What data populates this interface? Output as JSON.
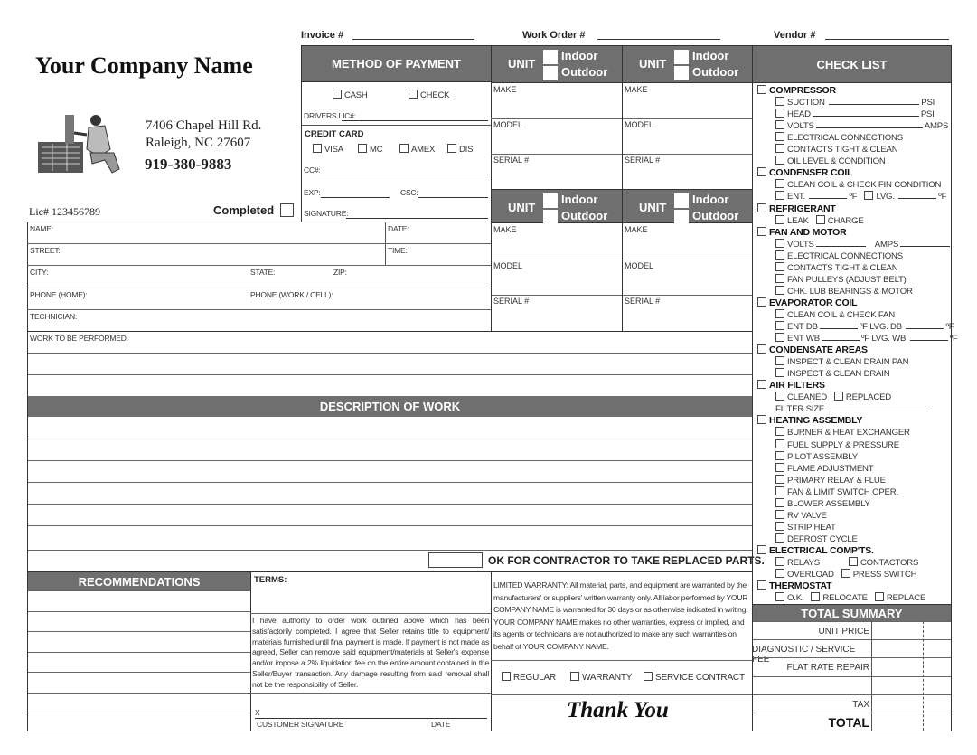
{
  "top": {
    "invoice": "Invoice #",
    "work_order": "Work Order #",
    "vendor": "Vendor #"
  },
  "company": {
    "name": "Your Company Name",
    "address1": "7406 Chapel Hill Rd.",
    "address2": "Raleigh, NC 27607",
    "phone": "919-380-9883",
    "license": "Lic#  123456789",
    "completed": "Completed",
    "logo_icon": "technician-servicing-ac-unit-illustration"
  },
  "payment": {
    "title": "METHOD OF PAYMENT",
    "cash": "CASH",
    "check": "CHECK",
    "drivers_lic": "DRIVERS LIC#:",
    "credit_card": "CREDIT CARD",
    "visa": "VISA",
    "mc": "MC",
    "amex": "AMEX",
    "dis": "DIS",
    "cc": "CC#:",
    "exp": "EXP:",
    "csc": "CSC:",
    "signature": "SIGNATURE:"
  },
  "units": {
    "unit": "UNIT",
    "indoor": "Indoor",
    "outdoor": "Outdoor",
    "make": "MAKE",
    "model": "MODEL",
    "serial": "SERIAL #"
  },
  "customer": {
    "name": "NAME:",
    "date": "DATE:",
    "street": "STREET:",
    "time": "TIME:",
    "city": "CITY:",
    "state": "STATE:",
    "zip": "ZIP:",
    "phone_home": "PHONE (HOME):",
    "phone_work": "PHONE (WORK / CELL):",
    "technician": "TECHNICIAN:",
    "work": "WORK TO BE PERFORMED:"
  },
  "description": {
    "title": "DESCRIPTION OF WORK",
    "ok_parts": "OK FOR CONTRACTOR TO TAKE REPLACED PARTS."
  },
  "recommendations": {
    "title": "RECOMMENDATIONS"
  },
  "terms": {
    "title": "TERMS:",
    "text": "I have authority to order work outlined above which has been satisfactorily completed. I agree that Seller retains title to equipment/ materials furnished until final payment is made.  If payment is not made as agreed, Seller can remove said equipment/materials at Seller's expense and/or impose a 2% liquidation fee on the entire amount contained in the Seller/Buyer transaction. Any damage resulting from said removal shall not be the responsibility of Seller.",
    "x": "X",
    "customer_signature": "CUSTOMER SIGNATURE",
    "date": "DATE"
  },
  "warranty": {
    "text": "LIMITED WARRANTY:  All material, parts, and equipment are warranted by the manufacturers' or suppliers' written warranty only.  All labor performed by YOUR COMPANY NAME is warranted for 30 days or as otherwise indicated in writing. YOUR COMPANY NAME makes no other warranties, express or implied, and its agents or technicians are not authorized to make any such warranties on behalf of YOUR COMPANY NAME.",
    "regular": "REGULAR",
    "warranty": "WARRANTY",
    "service_contract": "SERVICE CONTRACT",
    "thank_you": "Thank You"
  },
  "checklist": {
    "title": "CHECK LIST",
    "lines": [
      {
        "l": 0,
        "p": [
          [
            "box"
          ],
          [
            "t",
            "COMPRESSOR"
          ]
        ]
      },
      {
        "l": 1,
        "p": [
          [
            "box"
          ],
          [
            "t",
            "SUCTION "
          ],
          [
            "blank",
            "b-long"
          ],
          [
            "t",
            "PSI"
          ]
        ]
      },
      {
        "l": 1,
        "p": [
          [
            "box"
          ],
          [
            "t",
            "HEAD"
          ],
          [
            "blank",
            "b-xlong"
          ],
          [
            "t",
            "PSI"
          ]
        ]
      },
      {
        "l": 1,
        "p": [
          [
            "box"
          ],
          [
            "t",
            "VOLTS"
          ],
          [
            "blank",
            "b-xlong"
          ],
          [
            "t",
            "AMPS"
          ]
        ]
      },
      {
        "l": 1,
        "p": [
          [
            "box"
          ],
          [
            "t",
            "ELECTRICAL CONNECTIONS"
          ]
        ]
      },
      {
        "l": 1,
        "p": [
          [
            "box"
          ],
          [
            "t",
            "CONTACTS TIGHT & CLEAN"
          ]
        ]
      },
      {
        "l": 1,
        "p": [
          [
            "box"
          ],
          [
            "t",
            "OIL LEVEL & CONDITION"
          ]
        ]
      },
      {
        "l": 0,
        "p": [
          [
            "box"
          ],
          [
            "t",
            "CONDENSER COIL"
          ]
        ]
      },
      {
        "l": 1,
        "p": [
          [
            "box"
          ],
          [
            "t",
            "CLEAN COIL & CHECK FIN CONDITION"
          ]
        ]
      },
      {
        "l": 1,
        "p": [
          [
            "box"
          ],
          [
            "t",
            "ENT. "
          ],
          [
            "blank",
            "b-short"
          ],
          [
            "t",
            "ºF"
          ],
          [
            "gap"
          ],
          [
            "box"
          ],
          [
            "t",
            "LVG. "
          ],
          [
            "blank",
            "b-short"
          ],
          [
            "t",
            "ºF"
          ]
        ]
      },
      {
        "l": 0,
        "p": [
          [
            "box"
          ],
          [
            "t",
            "REFRIGERANT"
          ]
        ]
      },
      {
        "l": 1,
        "p": [
          [
            "box"
          ],
          [
            "t",
            "LEAK"
          ],
          [
            "gap"
          ],
          [
            "box"
          ],
          [
            "t",
            "CHARGE"
          ]
        ]
      },
      {
        "l": 0,
        "p": [
          [
            "box"
          ],
          [
            "t",
            "FAN AND MOTOR"
          ]
        ]
      },
      {
        "l": 1,
        "p": [
          [
            "box"
          ],
          [
            "t",
            "VOLTS"
          ],
          [
            "blank",
            "b-mid"
          ],
          [
            "gap"
          ],
          [
            "t",
            "AMPS"
          ],
          [
            "blank",
            "b-mid"
          ]
        ]
      },
      {
        "l": 1,
        "p": [
          [
            "box"
          ],
          [
            "t",
            "ELECTRICAL CONNECTIONS"
          ]
        ]
      },
      {
        "l": 1,
        "p": [
          [
            "box"
          ],
          [
            "t",
            "CONTACTS TIGHT & CLEAN"
          ]
        ]
      },
      {
        "l": 1,
        "p": [
          [
            "box"
          ],
          [
            "t",
            "FAN PULLEYS (ADJUST BELT)"
          ]
        ]
      },
      {
        "l": 1,
        "p": [
          [
            "box"
          ],
          [
            "t",
            "CHK. LUB BEARINGS & MOTOR"
          ]
        ]
      },
      {
        "l": 0,
        "p": [
          [
            "box"
          ],
          [
            "t",
            "EVAPORATOR COIL"
          ]
        ]
      },
      {
        "l": 1,
        "p": [
          [
            "box"
          ],
          [
            "t",
            "CLEAN COIL & CHECK FAN"
          ]
        ]
      },
      {
        "l": 1,
        "p": [
          [
            "box"
          ],
          [
            "t",
            "ENT DB"
          ],
          [
            "blank",
            "b-short"
          ],
          [
            "t",
            "ºF  LVG. DB "
          ],
          [
            "blank",
            "b-short"
          ],
          [
            "t",
            "ºF"
          ]
        ]
      },
      {
        "l": 1,
        "p": [
          [
            "box"
          ],
          [
            "t",
            "ENT WB"
          ],
          [
            "blank",
            "b-short"
          ],
          [
            "t",
            "ºF  LVG. WB "
          ],
          [
            "blank",
            "b-short"
          ],
          [
            "t",
            "ºF"
          ]
        ]
      },
      {
        "l": 0,
        "p": [
          [
            "box"
          ],
          [
            "t",
            "CONDENSATE AREAS"
          ]
        ]
      },
      {
        "l": 1,
        "p": [
          [
            "box"
          ],
          [
            "t",
            "INSPECT & CLEAN DRAIN PAN"
          ]
        ]
      },
      {
        "l": 1,
        "p": [
          [
            "box"
          ],
          [
            "t",
            "INSPECT & CLEAN DRAIN"
          ]
        ]
      },
      {
        "l": 0,
        "p": [
          [
            "box"
          ],
          [
            "t",
            "AIR FILTERS"
          ]
        ]
      },
      {
        "l": 1,
        "p": [
          [
            "box"
          ],
          [
            "t",
            "CLEANED"
          ],
          [
            "gap"
          ],
          [
            "box"
          ],
          [
            "t",
            "REPLACED"
          ]
        ]
      },
      {
        "l": 1,
        "p": [
          [
            "t",
            "FILTER SIZE "
          ],
          [
            "blank",
            "b-fs"
          ]
        ]
      },
      {
        "l": 0,
        "p": [
          [
            "box"
          ],
          [
            "t",
            "HEATING ASSEMBLY"
          ]
        ]
      },
      {
        "l": 1,
        "p": [
          [
            "box"
          ],
          [
            "t",
            "BURNER & HEAT EXCHANGER"
          ]
        ]
      },
      {
        "l": 1,
        "p": [
          [
            "box"
          ],
          [
            "t",
            "FUEL SUPPLY & PRESSURE"
          ]
        ]
      },
      {
        "l": 1,
        "p": [
          [
            "box"
          ],
          [
            "t",
            "PILOT ASSEMBLY"
          ]
        ]
      },
      {
        "l": 1,
        "p": [
          [
            "box"
          ],
          [
            "t",
            "FLAME ADJUSTMENT"
          ]
        ]
      },
      {
        "l": 1,
        "p": [
          [
            "box"
          ],
          [
            "t",
            "PRIMARY RELAY & FLUE"
          ]
        ]
      },
      {
        "l": 1,
        "p": [
          [
            "box"
          ],
          [
            "t",
            "FAN & LIMIT SWITCH OPER."
          ]
        ]
      },
      {
        "l": 1,
        "p": [
          [
            "box"
          ],
          [
            "t",
            "BLOWER ASSEMBLY"
          ]
        ]
      },
      {
        "l": 1,
        "p": [
          [
            "box"
          ],
          [
            "t",
            "RV VALVE"
          ]
        ]
      },
      {
        "l": 1,
        "p": [
          [
            "box"
          ],
          [
            "t",
            "STRIP HEAT"
          ]
        ]
      },
      {
        "l": 1,
        "p": [
          [
            "box"
          ],
          [
            "t",
            "DEFROST CYCLE"
          ]
        ]
      },
      {
        "l": 0,
        "p": [
          [
            "box"
          ],
          [
            "t",
            "ELECTRICAL COMP'TS."
          ]
        ]
      },
      {
        "l": 1,
        "p": [
          [
            "box"
          ],
          [
            "t",
            "RELAYS"
          ],
          [
            "gap"
          ],
          [
            "gap"
          ],
          [
            "gap"
          ],
          [
            "gap"
          ],
          [
            "box"
          ],
          [
            "t",
            "CONTACTORS"
          ]
        ]
      },
      {
        "l": 1,
        "p": [
          [
            "box"
          ],
          [
            "t",
            "OVERLOAD"
          ],
          [
            "gap"
          ],
          [
            "box"
          ],
          [
            "t",
            "PRESS SWITCH"
          ]
        ]
      },
      {
        "l": 0,
        "p": [
          [
            "box"
          ],
          [
            "t",
            "THERMOSTAT"
          ]
        ]
      },
      {
        "l": 1,
        "p": [
          [
            "box"
          ],
          [
            "t",
            "O.K."
          ],
          [
            "gap"
          ],
          [
            "box"
          ],
          [
            "t",
            "RELOCATE"
          ],
          [
            "gap"
          ],
          [
            "box"
          ],
          [
            "t",
            "REPLACE"
          ]
        ]
      }
    ]
  },
  "summary": {
    "title": "TOTAL SUMMARY",
    "rows": [
      "UNIT PRICE",
      "DIAGNOSTIC / SERVICE FEE",
      "FLAT RATE REPAIR",
      "",
      "TAX",
      "TOTAL"
    ]
  },
  "colors": {
    "header_gray": "#6f6f6f"
  }
}
